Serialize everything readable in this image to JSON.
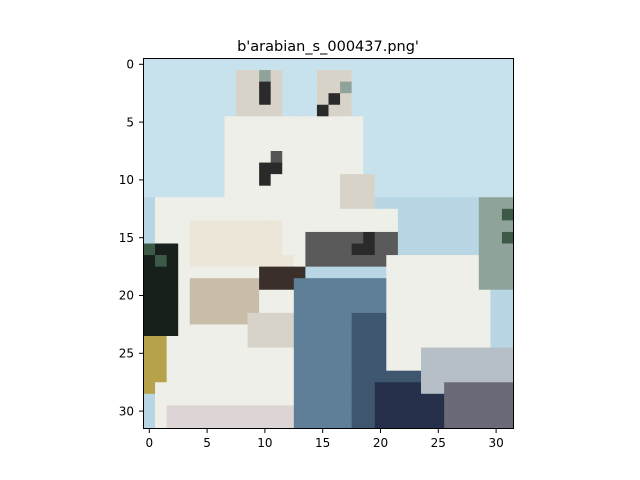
{
  "figure": {
    "title": "b'arabian_s_000437.png'"
  },
  "image": {
    "grid_size": [
      32,
      32
    ],
    "subject": "pixelated low-resolution photo of a white horse with a rider in blue clothing against a light blue sky",
    "palette": {
      "sky": "#c7e2ec",
      "sky_dark": "#b8d6e4",
      "horse_white": "#efefe9",
      "horse_shadow": "#d8d3c8",
      "horse_tan": "#c9bca9",
      "eye_dark": "#2a2a2a",
      "rider_blue": "#5e7f97",
      "rider_dark_blue": "#3f566f",
      "navy": "#27304a",
      "tree_dark": "#17201b",
      "tree_green": "#3d5a48",
      "hay_yellow": "#b5a24a",
      "grey_green": "#8fa39a"
    }
  },
  "axes": {
    "x_ticks": [
      "0",
      "5",
      "10",
      "15",
      "20",
      "25",
      "30"
    ],
    "y_ticks": [
      "0",
      "5",
      "10",
      "15",
      "20",
      "25",
      "30"
    ]
  }
}
